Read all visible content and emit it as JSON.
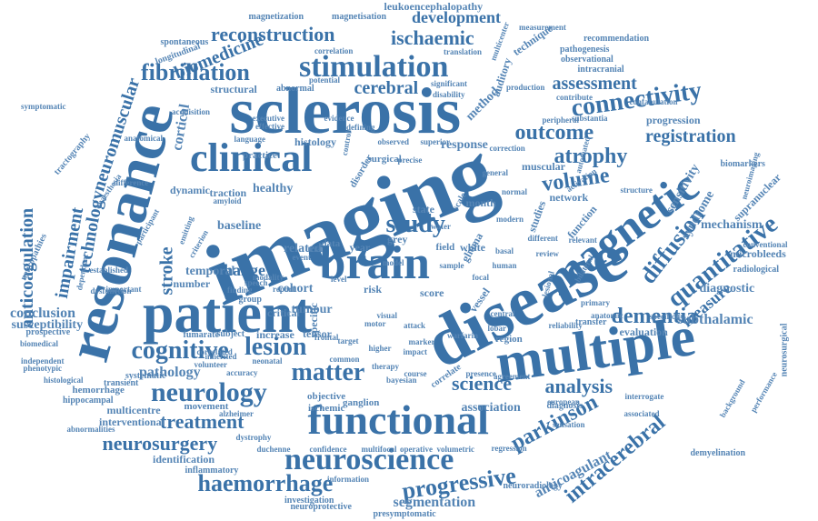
{
  "colors": {
    "primary": "#3a72a8",
    "secondary": "#5585b5",
    "background": "#ffffff"
  },
  "words": [
    "imaging",
    "disease",
    "sclerosis",
    "multiple",
    "patient",
    "resonance",
    "magnetic",
    "functional",
    "clinical",
    "brain",
    "stimulation",
    "neuroscience",
    "connectivity",
    "neurology",
    "quantitative",
    "progressive",
    "haemorrhage",
    "diffusion",
    "cognitive",
    "lesion",
    "fibrillation",
    "reconstruction",
    "ischaemic",
    "study",
    "volume",
    "atrophy",
    "outcome",
    "dementia",
    "analysis",
    "science",
    "treatment",
    "neurosurgery",
    "parkinson",
    "intracerebral",
    "matter",
    "anticoagulation",
    "impairment",
    "technology",
    "stroke",
    "registration",
    "cerebral",
    "cortical",
    "neuromuscular",
    "biomedicine",
    "development",
    "assessment",
    "change",
    "measure",
    "diagnostic",
    "subthalamic",
    "segmentation",
    "anticoagulant",
    "conclusion",
    "susceptibility",
    "pathology",
    "tumour",
    "mechanism",
    "syndrome",
    "sensitivity",
    "supranuclear",
    "leukoencephalopathy",
    "magnetization",
    "magnetisation",
    "recommendation",
    "pathogenesis",
    "observational",
    "intracranial",
    "measurement",
    "multicenter",
    "technique",
    "method",
    "auditory",
    "progression",
    "contribute",
    "confabulation",
    "substantia",
    "biomarkers",
    "microbleeds",
    "radiological",
    "conventional",
    "neuroimaging",
    "evaluation",
    "demyelination",
    "performance",
    "background",
    "neurosurgical",
    "interrogate",
    "associated",
    "diagnosis",
    "sensation",
    "european",
    "association",
    "agreement",
    "presence",
    "regression",
    "neuroradiology",
    "presymptomatic",
    "neuroprotective",
    "investigation",
    "information",
    "inflammatory",
    "identification",
    "multicentre",
    "interventional",
    "abnormalities",
    "hippocampal",
    "hemorrhage",
    "histological",
    "phenotypic",
    "independent",
    "biomedical",
    "prospective",
    "neuropathies",
    "tractography",
    "symptomatic",
    "longitudinal",
    "spontaneous",
    "structural",
    "abnormal",
    "potential",
    "disability",
    "significant",
    "translation",
    "correlation",
    "healthy",
    "temporal",
    "number",
    "critical",
    "tensor",
    "increase",
    "subject",
    "fumarate",
    "transient",
    "systematic",
    "accuracy",
    "movement",
    "ganglion",
    "objective",
    "ischemic",
    "alzheimer",
    "dystrophy",
    "duchenne",
    "confidence",
    "multifocal",
    "operative",
    "volumetric",
    "correlate",
    "impact",
    "warfarin",
    "region",
    "central",
    "vessel",
    "visual",
    "attack",
    "specific",
    "primary",
    "anatomic",
    "specificity",
    "reliability",
    "different",
    "human",
    "basal",
    "network",
    "studies",
    "function",
    "transfer",
    "glioma",
    "score",
    "risk",
    "motor",
    "grey",
    "white",
    "field",
    "water",
    "scale",
    "month",
    "data",
    "year",
    "trial",
    "related",
    "cohort",
    "group",
    "speech",
    "report",
    "baseline",
    "dynamic",
    "traction",
    "amyloid",
    "criterion",
    "emitting",
    "participant",
    "anaesthesia",
    "difference",
    "anatomical",
    "histology",
    "practice",
    "language",
    "executive",
    "effective",
    "evidence",
    "defining",
    "control",
    "surgical",
    "precise",
    "observed",
    "superior",
    "response",
    "disorder",
    "state",
    "correction",
    "peripheral",
    "muscular",
    "automated",
    "activation",
    "structure",
    "relevant",
    "review",
    "lobar",
    "bilateral",
    "lesional",
    "established",
    "dependent",
    "dysfunction",
    "finding",
    "modality",
    "neonatal",
    "volunteer",
    "common",
    "therapy",
    "higher",
    "marker",
    "frontal",
    "inherited",
    "correlated",
    "important",
    "acquisition",
    "production",
    "general",
    "normal",
    "modern",
    "bayesian",
    "course",
    "focal",
    "sample",
    "model",
    "target",
    "level",
    "event"
  ]
}
